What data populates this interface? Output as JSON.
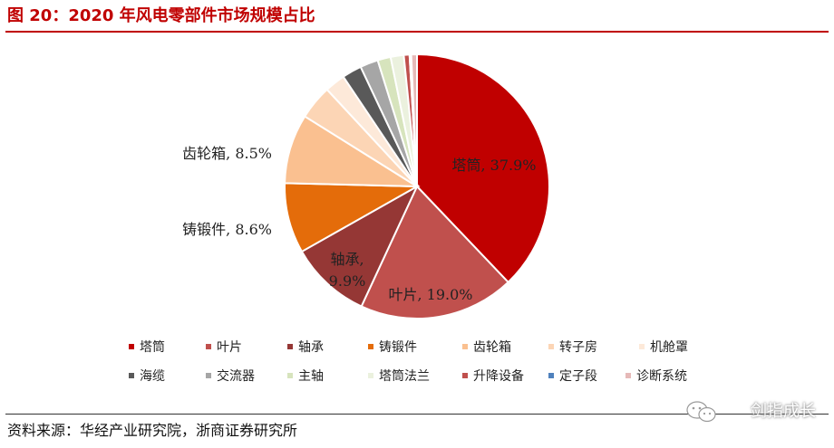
{
  "figure_title": "图 20：2020 年风电零部件市场规模占比",
  "source": "资料来源：华经产业研究院，浙商证券研究所",
  "watermark": "剑指成长",
  "chart_data": {
    "type": "pie",
    "title": "",
    "slices": [
      {
        "name": "塔筒",
        "value": 37.9,
        "color": "#c00000",
        "label": "塔筒, 37.9%"
      },
      {
        "name": "叶片",
        "value": 19.0,
        "color": "#c0504d",
        "label": "叶片, 19.0%"
      },
      {
        "name": "轴承",
        "value": 9.9,
        "color": "#953735",
        "label": "轴承, 9.9%"
      },
      {
        "name": "铸锻件",
        "value": 8.6,
        "color": "#e46c0a",
        "label": "铸锻件, 8.6%"
      },
      {
        "name": "齿轮箱",
        "value": 8.5,
        "color": "#fac090",
        "label": "齿轮箱, 8.5%"
      },
      {
        "name": "转子房",
        "value": 4.2,
        "color": "#fcd5b5",
        "label": ""
      },
      {
        "name": "机舱罩",
        "value": 2.5,
        "color": "#fde9d9",
        "label": ""
      },
      {
        "name": "海缆",
        "value": 2.4,
        "color": "#595959",
        "label": ""
      },
      {
        "name": "交流器",
        "value": 2.2,
        "color": "#a6a6a6",
        "label": ""
      },
      {
        "name": "主轴",
        "value": 1.6,
        "color": "#d7e4bd",
        "label": ""
      },
      {
        "name": "塔筒法兰",
        "value": 1.6,
        "color": "#ebf1de",
        "label": ""
      },
      {
        "name": "升降设备",
        "value": 0.7,
        "color": "#c0504d",
        "label": ""
      },
      {
        "name": "定子段",
        "value": 0.2,
        "color": "#4f81bd",
        "label": ""
      },
      {
        "name": "诊断系统",
        "value": 0.7,
        "color": "#e6b9b8",
        "label": ""
      }
    ],
    "legend_position": "bottom"
  }
}
